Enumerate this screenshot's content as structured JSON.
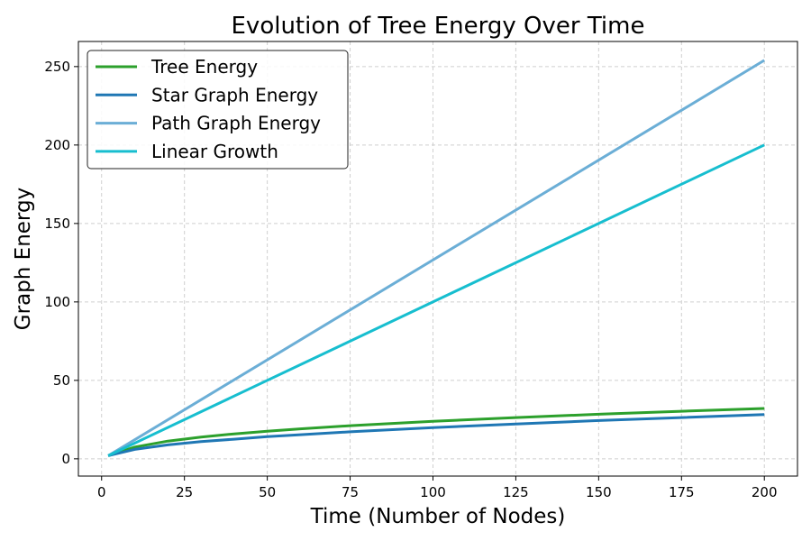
{
  "chart_data": {
    "type": "line",
    "title": "Evolution of Tree Energy Over Time",
    "xlabel": "Time (Number of Nodes)",
    "ylabel": "Graph Energy",
    "xlim": [
      -7,
      210
    ],
    "ylim": [
      -11,
      266
    ],
    "xticks": [
      0,
      25,
      50,
      75,
      100,
      125,
      150,
      175,
      200
    ],
    "yticks": [
      0,
      50,
      100,
      150,
      200,
      250
    ],
    "grid": true,
    "legend_position": "top-left",
    "series": [
      {
        "name": "Tree Energy",
        "color": "#2ca02c",
        "x": [
          2,
          10,
          20,
          30,
          40,
          50,
          60,
          75,
          100,
          125,
          150,
          175,
          200
        ],
        "y": [
          2,
          7.5,
          11.3,
          13.9,
          15.9,
          17.6,
          19.1,
          21.1,
          23.9,
          26.3,
          28.4,
          30.3,
          32.1
        ]
      },
      {
        "name": "Star Graph Energy",
        "color": "#1f77b4",
        "x": [
          2,
          10,
          20,
          30,
          40,
          50,
          60,
          75,
          100,
          125,
          150,
          175,
          200
        ],
        "y": [
          2,
          6,
          8.9,
          11,
          12.5,
          14.1,
          15.4,
          17.2,
          19.9,
          22.2,
          24.4,
          26.3,
          28.2
        ]
      },
      {
        "name": "Path Graph Energy",
        "color": "#6baed6",
        "x": [
          2,
          200
        ],
        "y": [
          2,
          254
        ]
      },
      {
        "name": "Linear Growth",
        "color": "#17becf",
        "x": [
          2,
          200
        ],
        "y": [
          2,
          200
        ]
      }
    ]
  }
}
